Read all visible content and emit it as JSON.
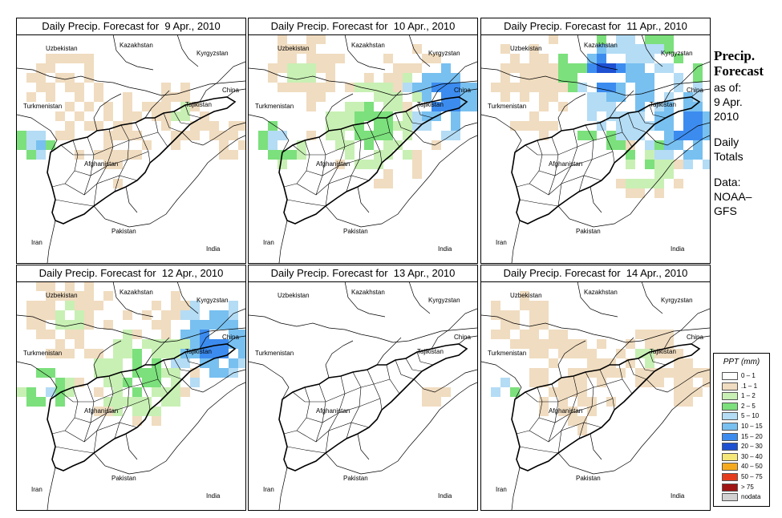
{
  "panels": [
    {
      "title": "Daily Precip. Forecast for  9 Apr., 2010",
      "level": 1
    },
    {
      "title": "Daily Precip. Forecast for  10 Apr., 2010",
      "level": 3
    },
    {
      "title": "Daily Precip. Forecast for  11 Apr., 2010",
      "level": 4
    },
    {
      "title": "Daily Precip. Forecast for  12 Apr., 2010",
      "level": 3
    },
    {
      "title": "Daily Precip. Forecast for  13 Apr., 2010",
      "level": 0
    },
    {
      "title": "Daily Precip. Forecast for  14 Apr., 2010",
      "level": 1
    }
  ],
  "map_labels": {
    "uzbekistan": "Uzbekistan",
    "kazakhstan": "Kazakhstan",
    "kyrgyzstan": "Kyrgyzstan",
    "china": "China",
    "tajikistan": "Tajikistan",
    "turkmenistan": "Turkmenistan",
    "afghanistan": "Afghanistan",
    "pakistan": "Pakistan",
    "iran": "Iran",
    "india": "India"
  },
  "sidebar": {
    "title_line1": "Precip.",
    "title_line2": "Forecast",
    "asof_line1": "as of:",
    "asof_line2": "9 Apr.",
    "asof_line3": "2010",
    "daily_line1": "Daily",
    "daily_line2": "Totals",
    "data_line1": "Data:",
    "data_line2": "NOAA–",
    "data_line3": "GFS"
  },
  "legend": {
    "title": "PPT (mm)",
    "items": [
      {
        "label": "0 – 1",
        "color": "#ffffff"
      },
      {
        "label": ".1 – 1",
        "color": "#f0dcc0"
      },
      {
        "label": "1 – 2",
        "color": "#c8f0b4"
      },
      {
        "label": "2 – 5",
        "color": "#7ce07c"
      },
      {
        "label": "5 – 10",
        "color": "#b4dcf5"
      },
      {
        "label": "10 – 15",
        "color": "#78c0f0"
      },
      {
        "label": "15 – 20",
        "color": "#3c8cf0"
      },
      {
        "label": "20 – 30",
        "color": "#1e50d2"
      },
      {
        "label": "30 – 40",
        "color": "#f5e678"
      },
      {
        "label": "40 – 50",
        "color": "#f5aa1e"
      },
      {
        "label": "50 – 75",
        "color": "#e63c1e"
      },
      {
        "label": "> 75",
        "color": "#a01414"
      },
      {
        "label": "nodata",
        "color": "#d2d2d2"
      }
    ]
  }
}
